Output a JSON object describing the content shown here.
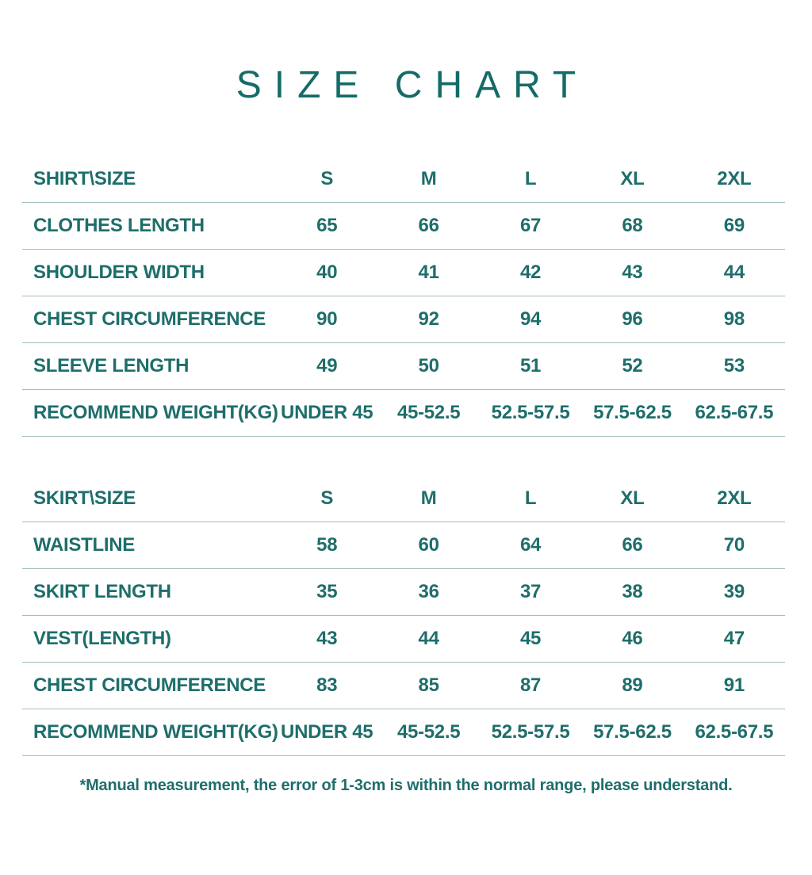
{
  "title": "SIZE CHART",
  "footer_note": "*Manual measurement, the error of 1-3cm is within the normal range, please understand.",
  "colors": {
    "text": "#1e6e6b",
    "title": "#156b67",
    "divider": "#a3bcbd",
    "background": "#ffffff"
  },
  "chart_data": [
    {
      "type": "table",
      "title": "SHIRT\\SIZE",
      "columns": [
        "S",
        "M",
        "L",
        "XL",
        "2XL"
      ],
      "rows": [
        {
          "label": "CLOTHES LENGTH",
          "values": [
            "65",
            "66",
            "67",
            "68",
            "69"
          ]
        },
        {
          "label": "SHOULDER WIDTH",
          "values": [
            "40",
            "41",
            "42",
            "43",
            "44"
          ]
        },
        {
          "label": "CHEST CIRCUMFERENCE",
          "values": [
            "90",
            "92",
            "94",
            "96",
            "98"
          ]
        },
        {
          "label": "SLEEVE LENGTH",
          "values": [
            "49",
            "50",
            "51",
            "52",
            "53"
          ]
        },
        {
          "label": "RECOMMEND WEIGHT(KG)",
          "values": [
            "UNDER 45",
            "45-52.5",
            "52.5-57.5",
            "57.5-62.5",
            "62.5-67.5"
          ]
        }
      ]
    },
    {
      "type": "table",
      "title": "SKIRT\\SIZE",
      "columns": [
        "S",
        "M",
        "L",
        "XL",
        "2XL"
      ],
      "rows": [
        {
          "label": "WAISTLINE",
          "values": [
            "58",
            "60",
            "64",
            "66",
            "70"
          ]
        },
        {
          "label": "SKIRT LENGTH",
          "values": [
            "35",
            "36",
            "37",
            "38",
            "39"
          ]
        },
        {
          "label": "VEST(LENGTH)",
          "values": [
            "43",
            "44",
            "45",
            "46",
            "47"
          ]
        },
        {
          "label": "CHEST CIRCUMFERENCE",
          "values": [
            "83",
            "85",
            "87",
            "89",
            "91"
          ]
        },
        {
          "label": "RECOMMEND WEIGHT(KG)",
          "values": [
            "UNDER 45",
            "45-52.5",
            "52.5-57.5",
            "57.5-62.5",
            "62.5-67.5"
          ]
        }
      ]
    }
  ]
}
